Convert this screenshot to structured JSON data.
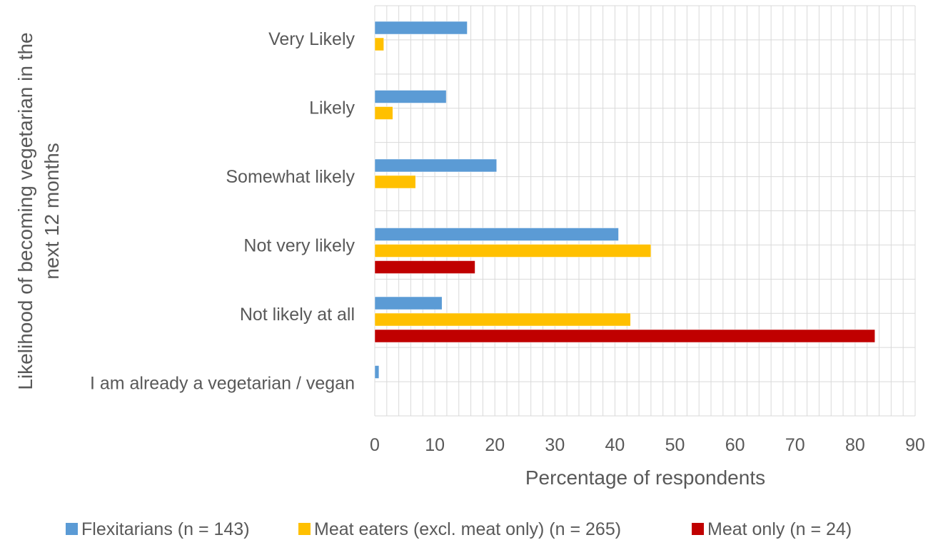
{
  "chart_data": {
    "type": "bar",
    "orientation": "horizontal",
    "xlabel": "Percentage of respondents",
    "ylabel": "Likelihood of becoming vegetarian in the next 12 months",
    "xlim": [
      0,
      90
    ],
    "xticks": [
      0,
      10,
      20,
      30,
      40,
      50,
      60,
      70,
      80,
      90
    ],
    "grid": true,
    "legend_position": "bottom",
    "categories": [
      "Very Likely",
      "Likely",
      "Somewhat likely",
      "Not very likely",
      "Not likely at all",
      "I am already a vegetarian / vegan"
    ],
    "series": [
      {
        "name": "Flexitarians (n = 143)",
        "color": "#5B9BD5",
        "values": [
          15.4,
          11.9,
          20.3,
          40.6,
          11.2,
          0.7
        ]
      },
      {
        "name": "Meat eaters (excl. meat only) (n = 265)",
        "color": "#FFC000",
        "values": [
          1.5,
          3.0,
          6.8,
          46.0,
          42.6,
          0
        ]
      },
      {
        "name": "Meat only (n = 24)",
        "color": "#C00000",
        "values": [
          0,
          0,
          0,
          16.7,
          83.3,
          0
        ]
      }
    ]
  }
}
